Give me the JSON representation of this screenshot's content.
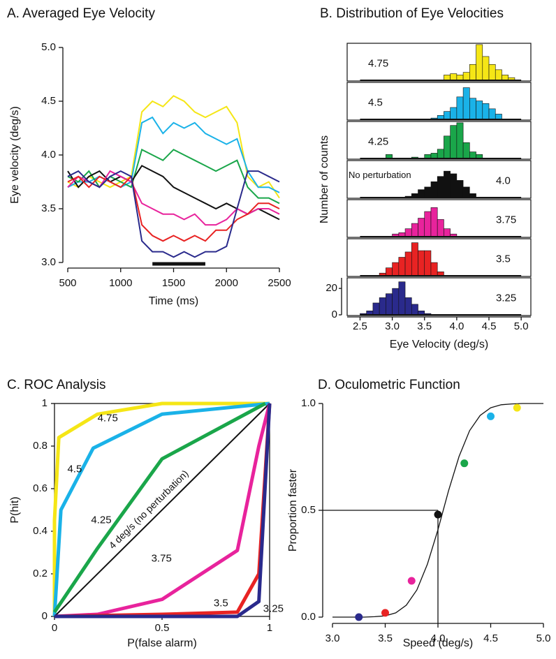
{
  "chart_data": [
    {
      "type": "line",
      "title": "A. Averaged Eye Velocity",
      "x_label": "Time (ms)",
      "y_label": "Eye velocity (deg/s)",
      "x": [
        500,
        600,
        700,
        800,
        900,
        1000,
        1100,
        1200,
        1300,
        1400,
        1500,
        1600,
        1700,
        1800,
        1900,
        2000,
        2100,
        2200,
        2300,
        2400,
        2500
      ],
      "series": [
        {
          "color": "#f5e616",
          "values": [
            3.75,
            3.7,
            3.8,
            3.75,
            3.7,
            3.75,
            3.8,
            4.4,
            4.5,
            4.45,
            4.55,
            4.5,
            4.4,
            4.35,
            4.4,
            4.45,
            4.3,
            3.8,
            3.7,
            3.75,
            3.6
          ]
        },
        {
          "color": "#1ab2e8",
          "values": [
            3.7,
            3.75,
            3.75,
            3.8,
            3.75,
            3.7,
            3.75,
            4.3,
            4.35,
            4.2,
            4.3,
            4.25,
            4.3,
            4.2,
            4.15,
            4.1,
            4.15,
            3.85,
            3.7,
            3.7,
            3.65
          ]
        },
        {
          "color": "#1aa64a",
          "values": [
            3.8,
            3.75,
            3.85,
            3.7,
            3.8,
            3.75,
            3.7,
            4.05,
            4.0,
            3.95,
            4.05,
            4.0,
            3.95,
            3.9,
            3.85,
            3.9,
            3.95,
            3.7,
            3.6,
            3.6,
            3.55
          ]
        },
        {
          "color": "#111111",
          "values": [
            3.85,
            3.7,
            3.8,
            3.85,
            3.75,
            3.8,
            3.75,
            3.9,
            3.85,
            3.8,
            3.7,
            3.65,
            3.6,
            3.55,
            3.5,
            3.55,
            3.5,
            3.45,
            3.5,
            3.45,
            3.4
          ]
        },
        {
          "color": "#e8239c",
          "values": [
            3.7,
            3.8,
            3.75,
            3.7,
            3.85,
            3.8,
            3.75,
            3.55,
            3.5,
            3.45,
            3.45,
            3.4,
            3.45,
            3.35,
            3.35,
            3.4,
            3.5,
            3.45,
            3.5,
            3.5,
            3.45
          ]
        },
        {
          "color": "#e82323",
          "values": [
            3.75,
            3.8,
            3.7,
            3.8,
            3.75,
            3.7,
            3.8,
            3.35,
            3.25,
            3.2,
            3.25,
            3.2,
            3.25,
            3.2,
            3.3,
            3.3,
            3.4,
            3.45,
            3.55,
            3.55,
            3.5
          ]
        },
        {
          "color": "#2a2a8c",
          "values": [
            3.8,
            3.85,
            3.75,
            3.7,
            3.8,
            3.85,
            3.8,
            3.2,
            3.1,
            3.1,
            3.05,
            3.1,
            3.05,
            3.1,
            3.1,
            3.15,
            3.5,
            3.85,
            3.85,
            3.8,
            3.75
          ]
        }
      ],
      "stimulus": [
        1300,
        1800
      ],
      "xlim": [
        500,
        2500
      ],
      "xticks": [
        500,
        1000,
        1500,
        2000,
        2500
      ],
      "ylim": [
        3,
        5
      ],
      "yticks": [
        {
          "value": 3,
          "label": "3.0"
        },
        3.5,
        {
          "value": 4,
          "label": "4.0"
        },
        4.5,
        {
          "value": 5,
          "label": "5.0"
        }
      ]
    },
    {
      "type": "histogram",
      "title": "B. Distribution of Eye Velocities",
      "x_label": "Eye Velocity (deg/s)",
      "y_label": "Number of counts",
      "bins": [
        2.5,
        2.6,
        2.7,
        2.8,
        2.9,
        3.0,
        3.1,
        3.2,
        3.3,
        3.4,
        3.5,
        3.6,
        3.7,
        3.8,
        3.9,
        4.0,
        4.1,
        4.2,
        4.3,
        4.4,
        4.5,
        4.6,
        4.7,
        4.8,
        4.9,
        5.0
      ],
      "panels": [
        {
          "label": "4.75",
          "color": "#f5e616",
          "counts": [
            0,
            0,
            0,
            0,
            0,
            0,
            0,
            0,
            0,
            0,
            0,
            0,
            0,
            4,
            5,
            4,
            6,
            12,
            27,
            18,
            12,
            8,
            4,
            2,
            0
          ]
        },
        {
          "label": "4.5",
          "color": "#1ab2e8",
          "counts": [
            0,
            0,
            0,
            0,
            0,
            0,
            0,
            0,
            0,
            0,
            0,
            1,
            3,
            6,
            9,
            17,
            24,
            16,
            14,
            12,
            8,
            4,
            0,
            0,
            0
          ]
        },
        {
          "label": "4.25",
          "color": "#1aa64a",
          "counts": [
            0,
            0,
            0,
            0,
            3,
            0,
            0,
            0,
            1,
            0,
            3,
            4,
            7,
            17,
            25,
            27,
            12,
            5,
            3,
            0,
            0,
            0,
            0,
            0,
            0
          ]
        },
        {
          "label": "4.0",
          "note": "No perturbation",
          "color": "#111111",
          "counts": [
            0,
            0,
            0,
            0,
            0,
            0,
            0,
            1,
            3,
            6,
            8,
            12,
            16,
            20,
            18,
            13,
            8,
            3,
            0,
            0,
            0,
            0,
            0,
            0,
            0
          ]
        },
        {
          "label": "3.75",
          "color": "#e8239c",
          "counts": [
            0,
            0,
            0,
            0,
            0,
            2,
            3,
            6,
            10,
            14,
            19,
            22,
            13,
            6,
            2,
            0,
            0,
            0,
            0,
            0,
            0,
            0,
            0,
            0,
            0
          ]
        },
        {
          "label": "3.5",
          "color": "#e82323",
          "counts": [
            0,
            0,
            0,
            2,
            6,
            10,
            14,
            18,
            25,
            19,
            19,
            10,
            3,
            0,
            0,
            0,
            0,
            0,
            0,
            0,
            0,
            0,
            0,
            0,
            0
          ]
        },
        {
          "label": "3.25",
          "color": "#2a2a8c",
          "counts": [
            1,
            3,
            9,
            13,
            16,
            20,
            25,
            13,
            8,
            3,
            1,
            0,
            0,
            0,
            0,
            0,
            0,
            0,
            0,
            0,
            0,
            0,
            0,
            0,
            0
          ]
        }
      ],
      "xlim": [
        2.3,
        5.15
      ],
      "xticks": [
        2.5,
        {
          "value": 3,
          "label": "3.0"
        },
        3.5,
        {
          "value": 4,
          "label": "4.0"
        },
        4.5,
        {
          "value": 5,
          "label": "5.0"
        }
      ],
      "ylim": [
        0,
        28
      ],
      "yticks": [
        0,
        20
      ]
    },
    {
      "type": "roc",
      "title": "C. ROC Analysis",
      "x_label": "P(false alarm)",
      "y_label": "P(hit)",
      "series": [
        {
          "name": "4.75",
          "color": "#f5e616",
          "x": [
            0,
            0,
            0.02,
            0.2,
            0.5,
            1
          ],
          "y": [
            0,
            0.45,
            0.84,
            0.95,
            1,
            1
          ]
        },
        {
          "name": "4.5",
          "color": "#1ab2e8",
          "x": [
            0,
            0.03,
            0.18,
            0.5,
            1
          ],
          "y": [
            0,
            0.5,
            0.79,
            0.95,
            1
          ]
        },
        {
          "name": "4.25",
          "color": "#1aa64a",
          "x": [
            0,
            0.2,
            0.5,
            0.98
          ],
          "y": [
            0.02,
            0.32,
            0.74,
            1
          ]
        },
        {
          "name": "4 deg/s (no perturbation)",
          "color": "#111111",
          "x": [
            0,
            1
          ],
          "y": [
            0,
            1
          ]
        },
        {
          "name": "3.75",
          "color": "#e8239c",
          "x": [
            0,
            0.2,
            0.5,
            0.85,
            0.95,
            1
          ],
          "y": [
            0,
            0.01,
            0.08,
            0.31,
            0.8,
            1
          ]
        },
        {
          "name": "3.5",
          "color": "#e82323",
          "x": [
            0,
            0.5,
            0.85,
            0.95,
            1
          ],
          "y": [
            0,
            0.01,
            0.02,
            0.2,
            1
          ]
        },
        {
          "name": "3.25",
          "color": "#2a2a8c",
          "x": [
            0,
            0.85,
            0.95,
            1
          ],
          "y": [
            0,
            0,
            0.07,
            1
          ]
        }
      ],
      "xlim": [
        0,
        1
      ],
      "xticks": [
        0,
        0.5,
        1
      ],
      "ylim": [
        0,
        1
      ],
      "yticks": [
        0,
        0.2,
        0.4,
        0.6,
        0.8,
        1
      ]
    },
    {
      "type": "scatter",
      "title": "D. Oculometric Function",
      "x_label": "Speed (deg/s)",
      "y_label": "Proportion faster",
      "x": [
        3.25,
        3.5,
        3.75,
        4.0,
        4.25,
        4.5,
        4.75
      ],
      "values": [
        0,
        0.02,
        0.17,
        0.48,
        0.72,
        0.94,
        0.98
      ],
      "colors": [
        "#2a2a8c",
        "#e82323",
        "#e8239c",
        "#111111",
        "#1aa64a",
        "#1ab2e8",
        "#f5e616"
      ],
      "curve_x": [
        3.0,
        3.1,
        3.2,
        3.3,
        3.4,
        3.5,
        3.6,
        3.7,
        3.8,
        3.9,
        4.0,
        4.1,
        4.2,
        4.3,
        4.4,
        4.5,
        4.6,
        4.7,
        4.8,
        4.9,
        5.0
      ],
      "curve_y": [
        0,
        0,
        0,
        0,
        0.002,
        0.006,
        0.02,
        0.056,
        0.127,
        0.248,
        0.409,
        0.591,
        0.752,
        0.873,
        0.944,
        0.98,
        0.994,
        0.998,
        1,
        1,
        1
      ],
      "threshold": [
        4.0,
        0.5
      ],
      "xlim": [
        3,
        5
      ],
      "xticks": [
        {
          "value": 3,
          "label": "3.0"
        },
        3.5,
        {
          "value": 4,
          "label": "4.0"
        },
        4.5,
        {
          "value": 5,
          "label": "5.0"
        }
      ],
      "ylim": [
        0,
        1
      ],
      "yticks": [
        {
          "value": 0,
          "label": "0.0"
        },
        0.5,
        {
          "value": 1,
          "label": "1.0"
        }
      ]
    }
  ]
}
